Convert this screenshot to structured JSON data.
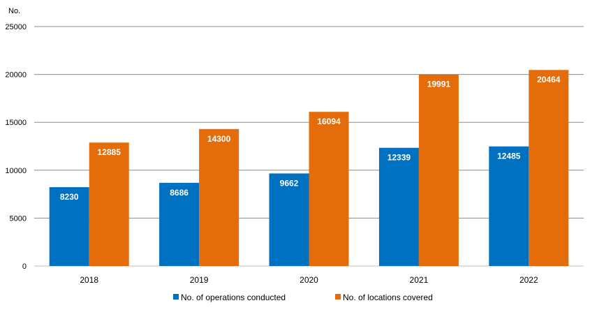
{
  "chart_data": {
    "type": "bar",
    "title": "",
    "xlabel": "",
    "ylabel": "No.",
    "ylim": [
      0,
      25000
    ],
    "yticks": [
      0,
      5000,
      10000,
      15000,
      20000,
      25000
    ],
    "grid": true,
    "legend_position": "bottom",
    "categories": [
      "2018",
      "2019",
      "2020",
      "2021",
      "2022"
    ],
    "series": [
      {
        "name": "No. of operations conducted",
        "color": "#0070C0",
        "values": [
          8230,
          8686,
          9662,
          12339,
          12485
        ]
      },
      {
        "name": "No. of locations covered",
        "color": "#E46C0A",
        "values": [
          12885,
          14300,
          16094,
          19991,
          20464
        ]
      }
    ],
    "data_labels": true
  }
}
